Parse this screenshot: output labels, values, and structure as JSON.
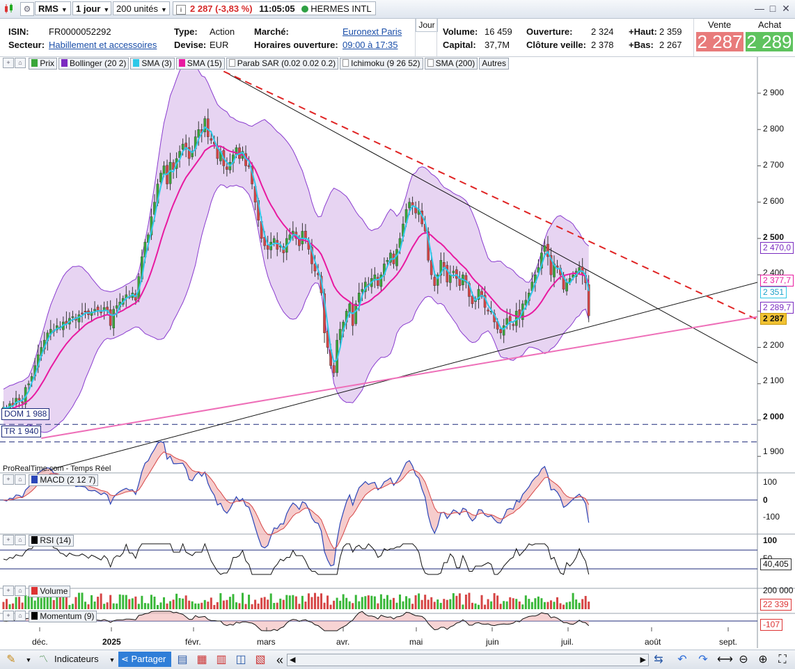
{
  "toolbar": {
    "ticker": "RMS",
    "interval": "1 jour",
    "units": "200 unités",
    "price_change": "2 287 (-3,83 %)",
    "time": "11:05:05",
    "name": "HERMES INTL",
    "colors": {
      "status_dot": "#2ea043",
      "change": "#d62a2a"
    }
  },
  "info": {
    "isin_label": "ISIN:",
    "isin": "FR0000052292",
    "secteur_label": "Secteur:",
    "secteur": "Habillement et accessoires",
    "type_label": "Type:",
    "type": "Action",
    "devise_label": "Devise:",
    "devise": "EUR",
    "marche_label": "Marché:",
    "marche": "Euronext Paris",
    "horaires_label": "Horaires ouverture:",
    "horaires": "09:00 à 17:35",
    "period_tab": "Jour",
    "volume_label": "Volume:",
    "volume": "16 459",
    "capital_label": "Capital:",
    "capital": "37,7M",
    "ouverture_label": "Ouverture:",
    "ouverture": "2 324",
    "cloture_label": "Clôture veille:",
    "cloture": "2 378",
    "haut_label": "+Haut:",
    "haut": "2 359",
    "bas_label": "+Bas:",
    "bas": "2 267",
    "vente_label": "Vente",
    "vente": "2 287",
    "achat_label": "Achat",
    "achat": "2 289",
    "colors": {
      "vente": "#e87b7b",
      "achat": "#5fc35f"
    }
  },
  "indicator_bar": {
    "items": [
      {
        "label": "Prix",
        "color": "#3aa63a"
      },
      {
        "label": "Bollinger (20 2)",
        "color": "#7a2bc0"
      },
      {
        "label": "SMA (3)",
        "color": "#2ec8e8"
      },
      {
        "label": "SMA (15)",
        "color": "#e81aa0"
      },
      {
        "label": "Parab SAR (0.02 0.02 0.2)",
        "color": "#bbbbbb"
      },
      {
        "label": "Ichimoku (9 26 52)",
        "color": "#bbbbbb"
      },
      {
        "label": "SMA (200)",
        "color": "#bbbbbb"
      }
    ],
    "others": "Autres"
  },
  "panels": {
    "macd_label": "MACD (2 12 7)",
    "rsi_label": "RSI (14)",
    "volume_label": "Volume",
    "momentum_label": "Momentum (9)",
    "source": "ProRealTime.com - Temps Réel"
  },
  "right_tags": {
    "bb_upper": "2 470,0",
    "sma15": "2 377,7",
    "sma3": "2 351",
    "bb_lower": "2 289,7",
    "price": "2 287",
    "rsi": "40,405",
    "volume": "22 339",
    "momentum": "-107",
    "macd_ticks": [
      "100",
      "0",
      "-100"
    ],
    "rsi_ticks": [
      "100",
      "50"
    ],
    "volume_ticks": [
      "200 000"
    ]
  },
  "levels": {
    "dom": "DOM 1 988",
    "tr": "TR 1 940"
  },
  "bottom": {
    "indicateurs": "Indicateurs",
    "partager": "Partager"
  },
  "chart_data": {
    "type": "candlestick",
    "y_ticks": [
      1900,
      2000,
      2100,
      2200,
      2300,
      2400,
      2500,
      2600,
      2700,
      2800,
      2900
    ],
    "y_tick_labels": [
      "1 900",
      "2 000",
      "2 100",
      "2 200",
      "",
      "2 400",
      "2 500",
      "2 600",
      "2 700",
      "2 800",
      "2 900"
    ],
    "ylim": [
      1840,
      2960
    ],
    "x_labels": [
      "déc.",
      "2025",
      "févr.",
      "mars",
      "avr.",
      "mai",
      "juin",
      "juil.",
      "août",
      "sept."
    ],
    "close": [
      2035,
      2030,
      2045,
      2040,
      2060,
      2055,
      2048,
      2090,
      2100,
      2120,
      2150,
      2180,
      2200,
      2220,
      2240,
      2250,
      2245,
      2260,
      2255,
      2270,
      2265,
      2280,
      2285,
      2275,
      2290,
      2295,
      2300,
      2290,
      2298,
      2305,
      2300,
      2295,
      2310,
      2300,
      2260,
      2305,
      2315,
      2325,
      2335,
      2345,
      2340,
      2350,
      2330,
      2395,
      2450,
      2490,
      2510,
      2560,
      2600,
      2650,
      2680,
      2700,
      2650,
      2710,
      2690,
      2720,
      2740,
      2760,
      2750,
      2720,
      2740,
      2780,
      2800,
      2790,
      2830,
      2780,
      2770,
      2760,
      2720,
      2740,
      2700,
      2690,
      2710,
      2730,
      2750,
      2720,
      2740,
      2700,
      2700,
      2650,
      2600,
      2550,
      2500,
      2480,
      2470,
      2490,
      2500,
      2470,
      2480,
      2460,
      2500,
      2510,
      2520,
      2500,
      2480,
      2520,
      2500,
      2470,
      2430,
      2410,
      2400,
      2350,
      2240,
      2200,
      2150,
      2130,
      2220,
      2250,
      2270,
      2300,
      2320,
      2260,
      2320,
      2350,
      2360,
      2380,
      2370,
      2390,
      2400,
      2370,
      2400,
      2430,
      2440,
      2460,
      2430,
      2470,
      2500,
      2540,
      2580,
      2600,
      2590,
      2570,
      2580,
      2540,
      2520,
      2440,
      2400,
      2370,
      2400,
      2440,
      2420,
      2380,
      2400,
      2410,
      2390,
      2370,
      2400,
      2380,
      2340,
      2320,
      2330,
      2360,
      2340,
      2310,
      2300,
      2300,
      2270,
      2250,
      2240,
      2260,
      2280,
      2270,
      2260,
      2300,
      2280,
      2320,
      2330,
      2350,
      2380,
      2400,
      2420,
      2460,
      2480,
      2450,
      2400,
      2430,
      2420,
      2400,
      2360,
      2380,
      2390,
      2400,
      2410,
      2420,
      2400,
      2378,
      2287
    ],
    "sma15": [
      2020,
      2025,
      2030,
      2032,
      2036,
      2040,
      2042,
      2048,
      2054,
      2062,
      2072,
      2084,
      2098,
      2112,
      2128,
      2144,
      2158,
      2172,
      2186,
      2198,
      2210,
      2220,
      2230,
      2238,
      2246,
      2254,
      2262,
      2268,
      2272,
      2278,
      2282,
      2284,
      2288,
      2290,
      2288,
      2290,
      2294,
      2298,
      2302,
      2308,
      2312,
      2318,
      2322,
      2332,
      2348,
      2366,
      2386,
      2410,
      2436,
      2464,
      2494,
      2522,
      2546,
      2572,
      2594,
      2614,
      2634,
      2652,
      2668,
      2680,
      2692,
      2704,
      2716,
      2728,
      2742,
      2748,
      2754,
      2756,
      2754,
      2754,
      2750,
      2744,
      2740,
      2738,
      2736,
      2732,
      2730,
      2724,
      2716,
      2704,
      2690,
      2670,
      2648,
      2628,
      2608,
      2592,
      2578,
      2562,
      2550,
      2538,
      2528,
      2518,
      2510,
      2502,
      2498,
      2496,
      2494,
      2490,
      2484,
      2476,
      2468,
      2456,
      2436,
      2414,
      2392,
      2370,
      2356,
      2346,
      2338,
      2332,
      2326,
      2318,
      2316,
      2316,
      2318,
      2322,
      2326,
      2332,
      2340,
      2346,
      2354,
      2362,
      2372,
      2382,
      2390,
      2400,
      2412,
      2426,
      2442,
      2460,
      2476,
      2490,
      2504,
      2512,
      2516,
      2514,
      2508,
      2500,
      2492,
      2486,
      2478,
      2468,
      2460,
      2450,
      2442,
      2432,
      2424,
      2416,
      2404,
      2392,
      2382,
      2374,
      2366,
      2356,
      2346,
      2336,
      2326,
      2316,
      2306,
      2300,
      2296,
      2292,
      2288,
      2286,
      2284,
      2284,
      2286,
      2290,
      2296,
      2304,
      2314,
      2326,
      2340,
      2354,
      2366,
      2376,
      2386,
      2394,
      2398,
      2400,
      2402,
      2404,
      2404,
      2402,
      2400,
      2396,
      2378
    ]
  }
}
